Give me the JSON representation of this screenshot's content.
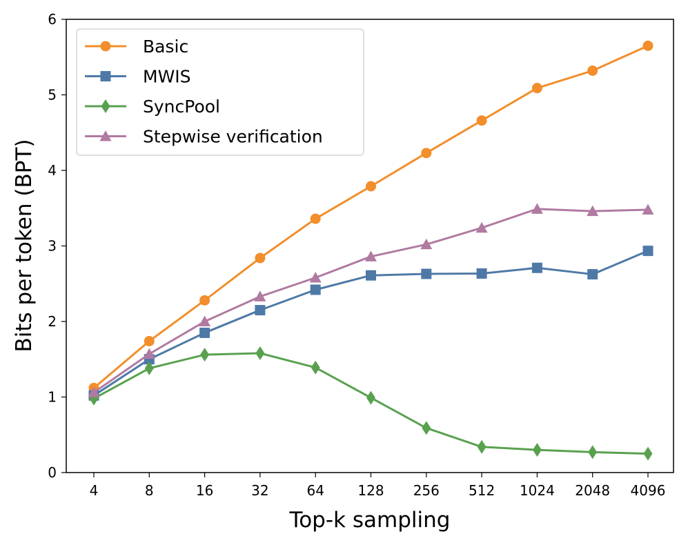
{
  "chart_data": {
    "type": "line",
    "title": "",
    "xlabel": "Top-k sampling",
    "ylabel": "Bits per token (BPT)",
    "categories": [
      "4",
      "8",
      "16",
      "32",
      "64",
      "128",
      "256",
      "512",
      "1024",
      "2048",
      "4096"
    ],
    "ylim": [
      0,
      6
    ],
    "yticks": [
      "0",
      "1",
      "2",
      "3",
      "4",
      "5",
      "6"
    ],
    "grid": false,
    "legend_position": "top-left",
    "series": [
      {
        "name": "Basic",
        "color": "#f28e2b",
        "marker": "circle",
        "values": [
          1.12,
          1.74,
          2.28,
          2.84,
          3.36,
          3.79,
          4.23,
          4.66,
          5.09,
          5.32,
          5.65
        ]
      },
      {
        "name": "MWIS",
        "color": "#4e79a7",
        "marker": "square",
        "values": [
          1.02,
          1.5,
          1.85,
          2.15,
          2.42,
          2.61,
          2.63,
          2.635,
          2.71,
          2.625,
          2.935
        ]
      },
      {
        "name": "SyncPool",
        "color": "#59a14f",
        "marker": "diamond",
        "values": [
          0.98,
          1.38,
          1.56,
          1.58,
          1.39,
          0.99,
          0.59,
          0.34,
          0.3,
          0.27,
          0.25
        ]
      },
      {
        "name": "Stepwise verification",
        "color": "#b07aa1",
        "marker": "triangle",
        "values": [
          1.06,
          1.57,
          2.0,
          2.33,
          2.58,
          2.86,
          3.02,
          3.24,
          3.49,
          3.46,
          3.48
        ]
      }
    ]
  }
}
